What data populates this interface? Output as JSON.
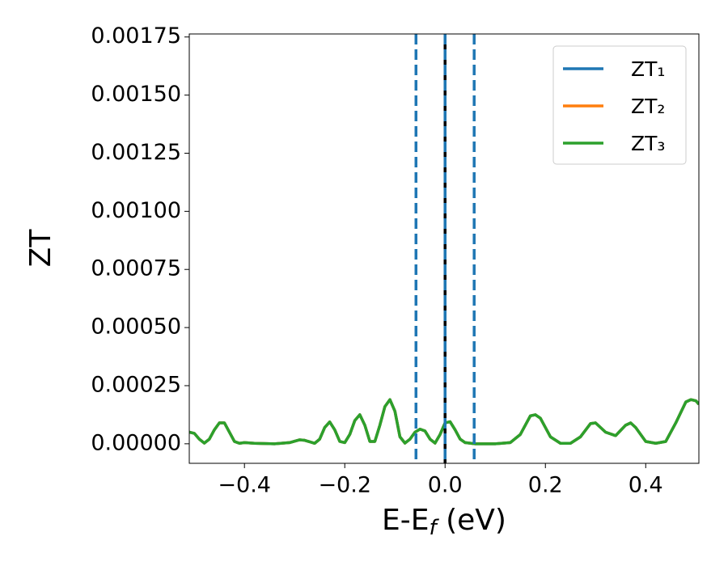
{
  "chart_data": {
    "type": "line",
    "xlabel": {
      "main": "E-E",
      "sub": "f",
      "rest": " (eV)"
    },
    "ylabel": "ZT",
    "x": [
      -0.51,
      -0.5,
      -0.49,
      -0.48,
      -0.47,
      -0.46,
      -0.45,
      -0.44,
      -0.43,
      -0.42,
      -0.41,
      -0.4,
      -0.38,
      -0.34,
      -0.31,
      -0.29,
      -0.28,
      -0.26,
      -0.25,
      -0.24,
      -0.23,
      -0.22,
      -0.21,
      -0.2,
      -0.19,
      -0.18,
      -0.17,
      -0.16,
      -0.15,
      -0.14,
      -0.13,
      -0.12,
      -0.11,
      -0.1,
      -0.09,
      -0.08,
      -0.07,
      -0.06,
      -0.05,
      -0.04,
      -0.03,
      -0.02,
      -0.01,
      0,
      0.01,
      0.02,
      0.03,
      0.04,
      0.06,
      0.1,
      0.13,
      0.15,
      0.17,
      0.18,
      0.19,
      0.21,
      0.23,
      0.25,
      0.27,
      0.29,
      0.3,
      0.32,
      0.34,
      0.36,
      0.37,
      0.38,
      0.4,
      0.42,
      0.44,
      0.46,
      0.48,
      0.49,
      0.5,
      0.506
    ],
    "series": [
      {
        "name": "ZT₁",
        "color": "#1f77b4",
        "values": [
          5e-05,
          4.5e-05,
          2e-05,
          3e-06,
          2e-05,
          6e-05,
          9e-05,
          9e-05,
          5e-05,
          1e-05,
          2e-06,
          5e-06,
          2e-06,
          0,
          5e-06,
          1.7e-05,
          1.5e-05,
          2e-06,
          2e-05,
          7e-05,
          9.4e-05,
          6e-05,
          1e-05,
          5e-06,
          4e-05,
          0.0001,
          0.000125,
          8e-05,
          1e-05,
          1e-05,
          8e-05,
          0.00016,
          0.00019,
          0.00014,
          3e-05,
          3e-06,
          2e-05,
          5e-05,
          6.3e-05,
          5.5e-05,
          2e-05,
          3e-06,
          4e-05,
          9e-05,
          9.5e-05,
          6e-05,
          2e-05,
          5e-06,
          0,
          0,
          5e-06,
          4e-05,
          0.00012,
          0.000125,
          0.00011,
          3e-05,
          2e-06,
          2e-06,
          3e-05,
          8.7e-05,
          9e-05,
          5e-05,
          3.5e-05,
          8e-05,
          9e-05,
          7e-05,
          1e-05,
          2e-06,
          1e-05,
          9e-05,
          0.00018,
          0.00019,
          0.000185,
          0.00017
        ]
      },
      {
        "name": "ZT₂",
        "color": "#ff7f0e",
        "values": [
          5e-05,
          4.5e-05,
          2e-05,
          3e-06,
          2e-05,
          6e-05,
          9e-05,
          9e-05,
          5e-05,
          1e-05,
          2e-06,
          5e-06,
          2e-06,
          0,
          5e-06,
          1.7e-05,
          1.5e-05,
          2e-06,
          2e-05,
          7e-05,
          9.4e-05,
          6e-05,
          1e-05,
          5e-06,
          4e-05,
          0.0001,
          0.000125,
          8e-05,
          1e-05,
          1e-05,
          8e-05,
          0.00016,
          0.00019,
          0.00014,
          3e-05,
          3e-06,
          2e-05,
          5e-05,
          6.3e-05,
          5.5e-05,
          2e-05,
          3e-06,
          4e-05,
          9e-05,
          9.5e-05,
          6e-05,
          2e-05,
          5e-06,
          0,
          0,
          5e-06,
          4e-05,
          0.00012,
          0.000125,
          0.00011,
          3e-05,
          2e-06,
          2e-06,
          3e-05,
          8.7e-05,
          9e-05,
          5e-05,
          3.5e-05,
          8e-05,
          9e-05,
          7e-05,
          1e-05,
          2e-06,
          1e-05,
          9e-05,
          0.00018,
          0.00019,
          0.000185,
          0.00017
        ]
      },
      {
        "name": "ZT₃",
        "color": "#2ca02c",
        "values": [
          5e-05,
          4.5e-05,
          2e-05,
          3e-06,
          2e-05,
          6e-05,
          9e-05,
          9e-05,
          5e-05,
          1e-05,
          2e-06,
          5e-06,
          2e-06,
          0,
          5e-06,
          1.7e-05,
          1.5e-05,
          2e-06,
          2e-05,
          7e-05,
          9.4e-05,
          6e-05,
          1e-05,
          5e-06,
          4e-05,
          0.0001,
          0.000125,
          8e-05,
          1e-05,
          1e-05,
          8e-05,
          0.00016,
          0.00019,
          0.00014,
          3e-05,
          3e-06,
          2e-05,
          5e-05,
          6.3e-05,
          5.5e-05,
          2e-05,
          3e-06,
          4e-05,
          9e-05,
          9.5e-05,
          6e-05,
          2e-05,
          5e-06,
          0,
          0,
          5e-06,
          4e-05,
          0.00012,
          0.000125,
          0.00011,
          3e-05,
          2e-06,
          2e-06,
          3e-05,
          8.7e-05,
          9e-05,
          5e-05,
          3.5e-05,
          8e-05,
          9e-05,
          7e-05,
          1e-05,
          2e-06,
          1e-05,
          9e-05,
          0.00018,
          0.00019,
          0.000185,
          0.00017
        ]
      }
    ],
    "vlines": [
      {
        "x": -0.058,
        "color": "#1f77b4",
        "style": "dashed"
      },
      {
        "x": 0,
        "color": "#000000",
        "style": "solid"
      },
      {
        "x": 0,
        "color": "#1f77b4",
        "style": "dashed"
      },
      {
        "x": 0.058,
        "color": "#1f77b4",
        "style": "dashed"
      }
    ],
    "xlim": [
      -0.51,
      0.506
    ],
    "ylim": [
      -8.4e-05,
      0.001763
    ],
    "xticks": [
      {
        "value": -0.4,
        "label": "−0.4"
      },
      {
        "value": -0.2,
        "label": "−0.2"
      },
      {
        "value": 0,
        "label": "0.0"
      },
      0.2,
      0.4
    ],
    "yticks": [
      {
        "value": 0,
        "label": "0.00000"
      },
      {
        "value": 0.00025,
        "label": "0.00025"
      },
      {
        "value": 0.0005,
        "label": "0.00050"
      },
      {
        "value": 0.00075,
        "label": "0.00075"
      },
      {
        "value": 0.001,
        "label": "0.00100"
      },
      {
        "value": 0.00125,
        "label": "0.00125"
      },
      {
        "value": 0.0015,
        "label": "0.00150"
      },
      {
        "value": 0.00175,
        "label": "0.00175"
      }
    ],
    "legend": "upper right",
    "grid": false
  }
}
